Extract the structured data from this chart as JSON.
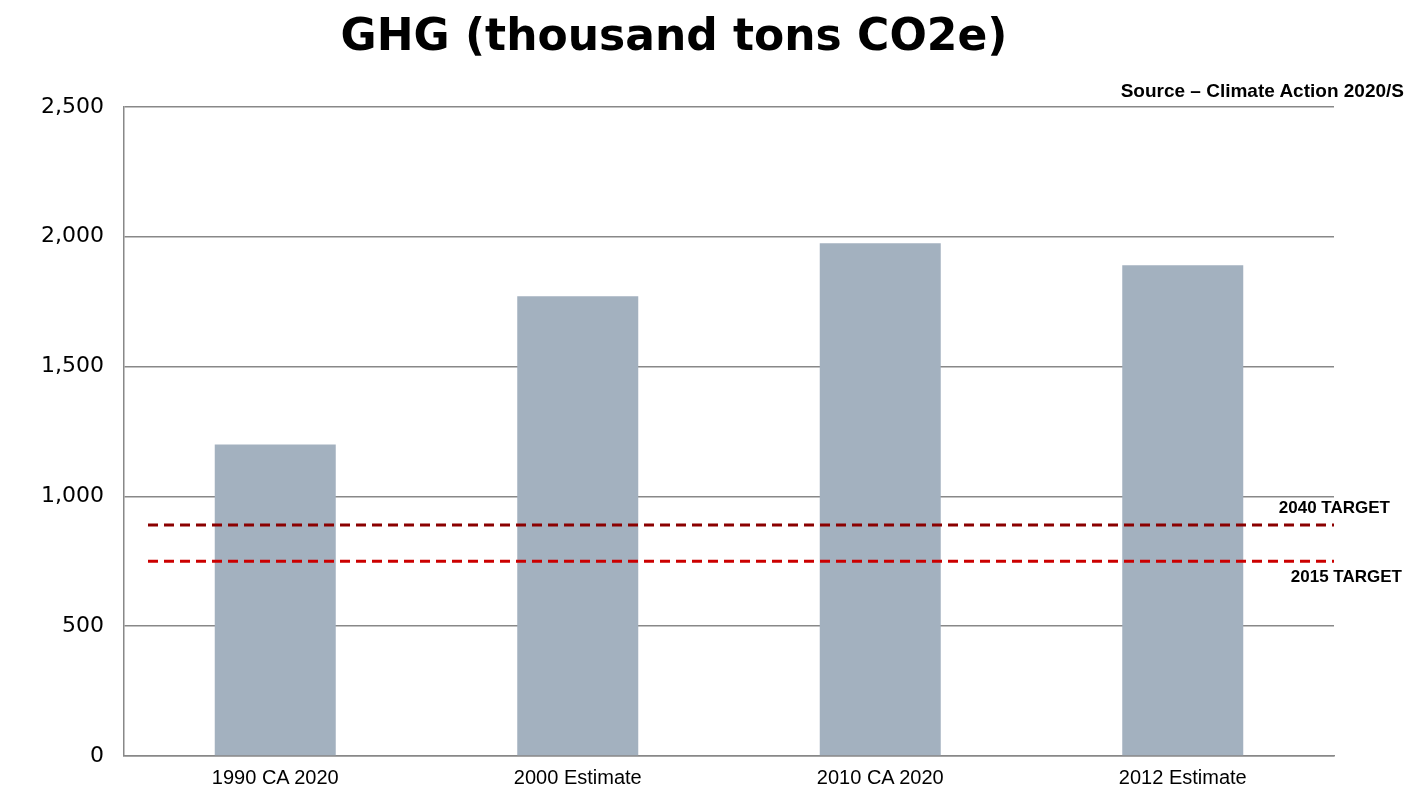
{
  "chart_data": {
    "type": "bar",
    "title": "GHG (thousand tons CO2e)",
    "categories": [
      "1990 CA 2020",
      "2000 Estimate",
      "2010 CA 2020",
      "2012 Estimate"
    ],
    "values": [
      1200,
      1770,
      1975,
      1890
    ],
    "color": "#a3b1bf",
    "ylim": [
      0,
      2500
    ],
    "yticks": [
      0,
      500,
      {
        "value": 1000,
        "label": "1,000"
      },
      {
        "value": 1500,
        "label": "1,500"
      },
      {
        "value": 2000,
        "label": "2,000"
      },
      {
        "value": 2500,
        "label": "2,500"
      }
    ],
    "grid": "y",
    "ref_lines": [
      {
        "axis": "y",
        "value": 890,
        "label": "2040 TARGET",
        "color": "#8b0000",
        "line_style": "dashed"
      },
      {
        "axis": "y",
        "value": 750,
        "label": "2015 TARGET",
        "color": "#cc0000",
        "line_style": "dashed"
      }
    ],
    "annotations": [
      "Source – Climate Action 2020/S"
    ]
  }
}
